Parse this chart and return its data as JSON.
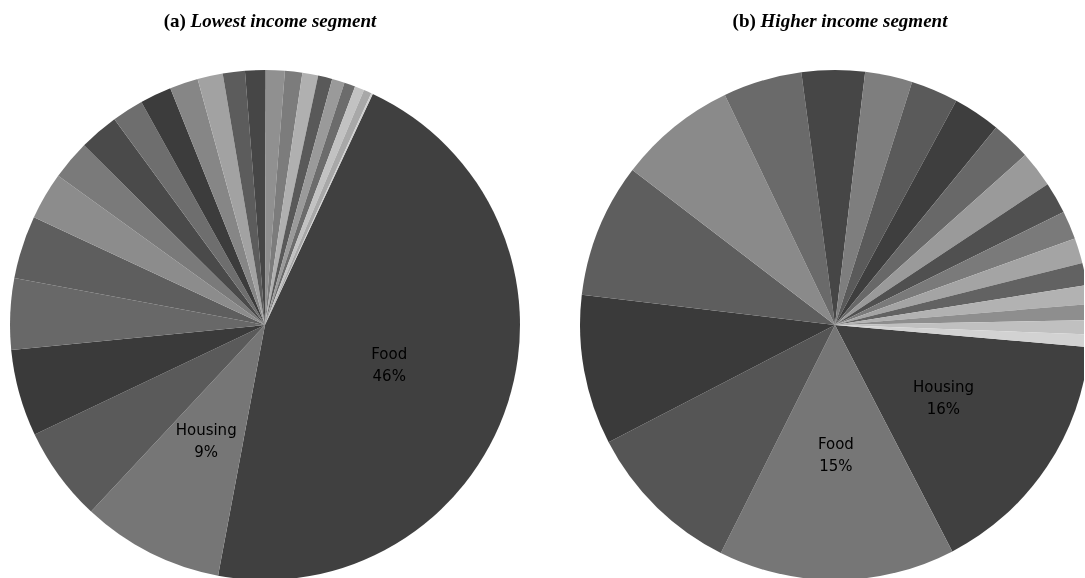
{
  "chart_data": [
    {
      "type": "pie",
      "title": "(a) Lowest income segment",
      "categories": [
        "Food",
        "Housing",
        null,
        null,
        null,
        null,
        null,
        null,
        null,
        null,
        null,
        null,
        null,
        null,
        null,
        null,
        null,
        null,
        null,
        null,
        null,
        null,
        null,
        null
      ],
      "values": [
        46,
        9,
        6,
        5.5,
        4.5,
        4,
        3,
        2.5,
        2.5,
        2,
        2,
        1.8,
        1.6,
        1.4,
        1.3,
        1.2,
        1.1,
        1,
        0.9,
        0.8,
        0.7,
        0.6,
        0.5,
        0.1
      ],
      "value_labels": [
        "46%",
        "9%",
        null,
        null,
        null,
        null,
        null,
        null,
        null,
        null,
        null,
        null,
        null,
        null,
        null,
        null,
        null,
        null,
        null,
        null,
        null,
        null,
        null,
        null
      ],
      "colors": [
        "#404040",
        "#767676",
        "#5a5a5a",
        "#3a3a3a",
        "#686868",
        "#5e5e5e",
        "#8c8c8c",
        "#7a7a7a",
        "#4a4a4a",
        "#6e6e6e",
        "#3c3c3c",
        "#868686",
        "#a2a2a2",
        "#5c5c5c",
        "#464646",
        "#909090",
        "#7c7c7c",
        "#b0b0b0",
        "#595959",
        "#9a9a9a",
        "#6c6c6c",
        "#c2c2c2",
        "#a8a8a8",
        "#cfcfcf"
      ]
    },
    {
      "type": "pie",
      "title": "(b) Higher income segment",
      "categories": [
        "Housing",
        "Food",
        null,
        null,
        null,
        null,
        null,
        null,
        null,
        null,
        null,
        null,
        null,
        null,
        null,
        null,
        null,
        null,
        null,
        null,
        null
      ],
      "values": [
        16,
        15,
        10,
        9.5,
        8.5,
        7.5,
        5,
        4,
        3,
        3,
        3,
        2.5,
        2.3,
        2,
        1.8,
        1.6,
        1.4,
        1.2,
        1,
        0.9,
        0.8
      ],
      "value_labels": [
        "16%",
        "15%",
        null,
        null,
        null,
        null,
        null,
        null,
        null,
        null,
        null,
        null,
        null,
        null,
        null,
        null,
        null,
        null,
        null,
        null,
        null
      ],
      "colors": [
        "#404040",
        "#767676",
        "#555555",
        "#3a3a3a",
        "#5e5e5e",
        "#8a8a8a",
        "#6a6a6a",
        "#464646",
        "#7e7e7e",
        "#5a5a5a",
        "#3e3e3e",
        "#686868",
        "#9a9a9a",
        "#505050",
        "#7a7a7a",
        "#a4a4a4",
        "#626262",
        "#b2b2b2",
        "#8e8e8e",
        "#c0c0c0",
        "#d2d2d2"
      ]
    }
  ]
}
